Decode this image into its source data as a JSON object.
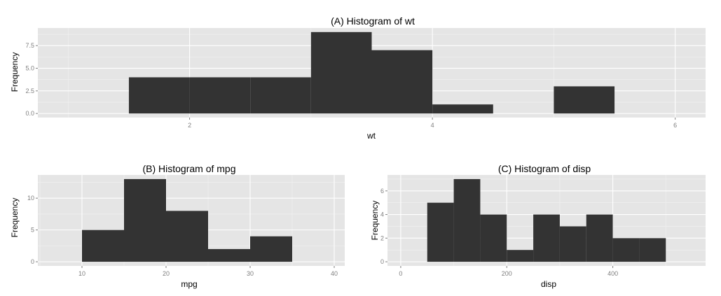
{
  "chart_data": [
    {
      "id": "A",
      "type": "bar",
      "title": "(A) Histogram of wt",
      "xlabel": "wt",
      "ylabel": "Frequency",
      "xlim": [
        0.75,
        6.25
      ],
      "ylim": [
        -0.45,
        9.45
      ],
      "xticks": [
        2,
        4,
        6
      ],
      "yticks": [
        0,
        2.5,
        5,
        7.5
      ],
      "ytick_labels": [
        "0.0",
        "2.5",
        "5.0",
        "7.5"
      ],
      "bins": [
        {
          "start": 1.5,
          "end": 2.0,
          "count": 4
        },
        {
          "start": 2.0,
          "end": 2.5,
          "count": 4
        },
        {
          "start": 2.5,
          "end": 3.0,
          "count": 4
        },
        {
          "start": 3.0,
          "end": 3.5,
          "count": 9
        },
        {
          "start": 3.5,
          "end": 4.0,
          "count": 7
        },
        {
          "start": 4.0,
          "end": 4.5,
          "count": 1
        },
        {
          "start": 4.5,
          "end": 5.0,
          "count": 0
        },
        {
          "start": 5.0,
          "end": 5.5,
          "count": 3
        }
      ],
      "colors": {
        "bar": "#333333",
        "panel": "#e5e5e5",
        "grid_major": "#ffffff",
        "grid_minor": "#f2f2f2",
        "tick_text": "#7f7f7f"
      }
    },
    {
      "id": "B",
      "type": "bar",
      "title": "(B) Histogram of mpg",
      "xlabel": "mpg",
      "ylabel": "Frequency",
      "xlim": [
        4.75,
        41.25
      ],
      "ylim": [
        -0.65,
        13.65
      ],
      "xticks": [
        10,
        20,
        30,
        40
      ],
      "yticks": [
        0,
        5,
        10
      ],
      "ytick_labels": [
        "0",
        "5",
        "10"
      ],
      "bins": [
        {
          "start": 10,
          "end": 15,
          "count": 5
        },
        {
          "start": 15,
          "end": 20,
          "count": 13
        },
        {
          "start": 20,
          "end": 25,
          "count": 8
        },
        {
          "start": 25,
          "end": 30,
          "count": 2
        },
        {
          "start": 30,
          "end": 35,
          "count": 4
        }
      ],
      "colors": {
        "bar": "#333333",
        "panel": "#e5e5e5",
        "grid_major": "#ffffff",
        "grid_minor": "#f2f2f2",
        "tick_text": "#7f7f7f"
      }
    },
    {
      "id": "C",
      "type": "bar",
      "title": "(C) Histogram of disp",
      "xlabel": "disp",
      "ylabel": "Frequency",
      "xlim": [
        -25,
        575
      ],
      "ylim": [
        -0.35,
        7.35
      ],
      "xticks": [
        0,
        200,
        400
      ],
      "yticks": [
        0,
        2,
        4,
        6
      ],
      "ytick_labels": [
        "0",
        "2",
        "4",
        "6"
      ],
      "bins": [
        {
          "start": 50,
          "end": 100,
          "count": 5
        },
        {
          "start": 100,
          "end": 150,
          "count": 7
        },
        {
          "start": 150,
          "end": 200,
          "count": 4
        },
        {
          "start": 200,
          "end": 250,
          "count": 1
        },
        {
          "start": 250,
          "end": 300,
          "count": 4
        },
        {
          "start": 300,
          "end": 350,
          "count": 3
        },
        {
          "start": 350,
          "end": 400,
          "count": 4
        },
        {
          "start": 400,
          "end": 450,
          "count": 2
        },
        {
          "start": 450,
          "end": 500,
          "count": 2
        }
      ],
      "colors": {
        "bar": "#333333",
        "panel": "#e5e5e5",
        "grid_major": "#ffffff",
        "grid_minor": "#f2f2f2",
        "tick_text": "#7f7f7f"
      }
    }
  ]
}
